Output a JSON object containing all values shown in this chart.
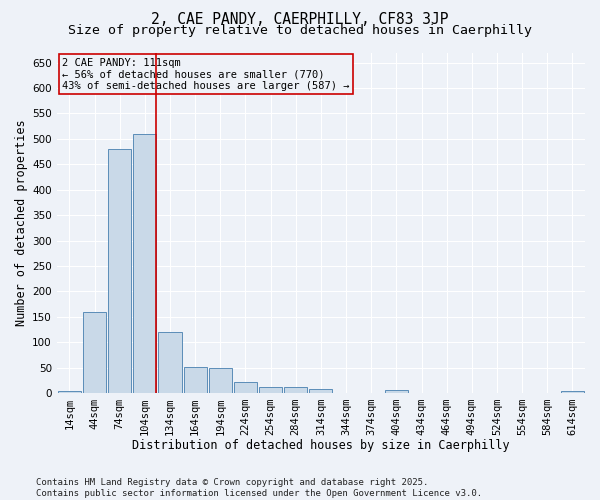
{
  "title": "2, CAE PANDY, CAERPHILLY, CF83 3JP",
  "subtitle": "Size of property relative to detached houses in Caerphilly",
  "xlabel": "Distribution of detached houses by size in Caerphilly",
  "ylabel": "Number of detached properties",
  "bin_labels": [
    "14sqm",
    "44sqm",
    "74sqm",
    "104sqm",
    "134sqm",
    "164sqm",
    "194sqm",
    "224sqm",
    "254sqm",
    "284sqm",
    "314sqm",
    "344sqm",
    "374sqm",
    "404sqm",
    "434sqm",
    "464sqm",
    "494sqm",
    "524sqm",
    "554sqm",
    "584sqm",
    "614sqm"
  ],
  "bar_values": [
    3,
    160,
    480,
    510,
    120,
    52,
    50,
    22,
    12,
    12,
    8,
    0,
    0,
    5,
    0,
    0,
    0,
    0,
    0,
    0,
    3
  ],
  "bar_color": "#c9d9e8",
  "bar_edge_color": "#5b8db8",
  "vline_color": "#cc0000",
  "ylim": [
    0,
    670
  ],
  "yticks": [
    0,
    50,
    100,
    150,
    200,
    250,
    300,
    350,
    400,
    450,
    500,
    550,
    600,
    650
  ],
  "annotation_text": "2 CAE PANDY: 111sqm\n← 56% of detached houses are smaller (770)\n43% of semi-detached houses are larger (587) →",
  "footer_text": "Contains HM Land Registry data © Crown copyright and database right 2025.\nContains public sector information licensed under the Open Government Licence v3.0.",
  "bg_color": "#eef2f8",
  "grid_color": "#ffffff",
  "title_fontsize": 10.5,
  "subtitle_fontsize": 9.5,
  "axis_label_fontsize": 8.5,
  "tick_fontsize": 7.5,
  "annot_fontsize": 7.5,
  "footer_fontsize": 6.5
}
